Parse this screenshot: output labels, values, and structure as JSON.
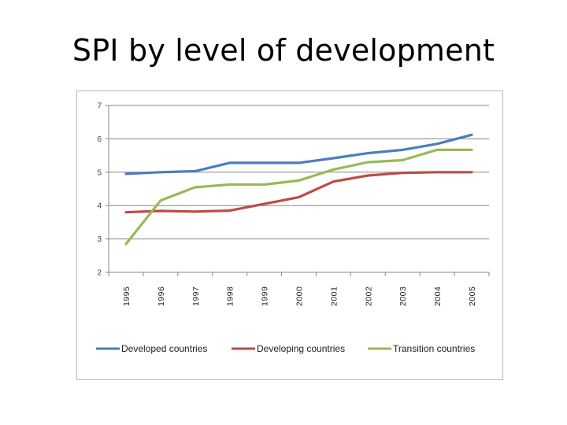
{
  "slide": {
    "title": "SPI by level of development"
  },
  "colors": {
    "developed": "#4a7ebb",
    "developing": "#be4b48",
    "transition": "#98b954",
    "gridline": "#878787",
    "axis": "#878787"
  },
  "chart_data": {
    "type": "line",
    "title": "",
    "xlabel": "",
    "ylabel": "",
    "x": [
      "1995",
      "1996",
      "1997",
      "1998",
      "1999",
      "2000",
      "2001",
      "2002",
      "2003",
      "2004",
      "2005"
    ],
    "ylim": [
      2,
      7
    ],
    "yticks": [
      2,
      3,
      4,
      5,
      6,
      7
    ],
    "grid": true,
    "legend_position": "bottom",
    "series": [
      {
        "name": "Developed countries",
        "color_key": "developed",
        "values": [
          4.95,
          5.0,
          5.03,
          5.28,
          5.28,
          5.28,
          5.42,
          5.57,
          5.67,
          5.85,
          6.12
        ]
      },
      {
        "name": "Developing countries",
        "color_key": "developing",
        "values": [
          3.8,
          3.84,
          3.82,
          3.85,
          4.05,
          4.25,
          4.72,
          4.9,
          4.98,
          5.0,
          5.0
        ]
      },
      {
        "name": "Transition countries",
        "color_key": "transition",
        "values": [
          2.85,
          4.15,
          4.55,
          4.63,
          4.63,
          4.75,
          5.08,
          5.3,
          5.36,
          5.67,
          5.67
        ]
      }
    ]
  }
}
